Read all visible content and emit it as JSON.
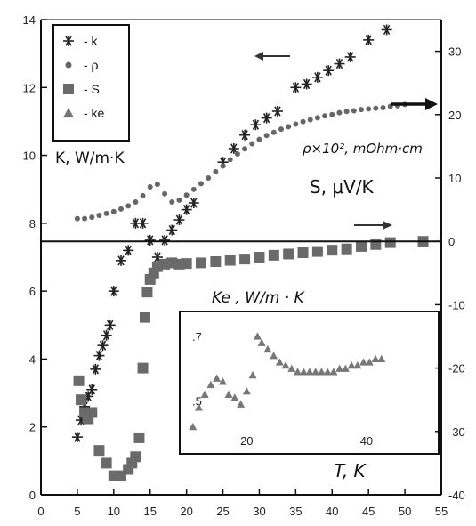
{
  "chart_data": {
    "type": "scatter",
    "x": {
      "label": "T, K",
      "range": [
        0,
        55
      ],
      "ticks": [
        0,
        5,
        10,
        15,
        20,
        25,
        30,
        35,
        40,
        45,
        50,
        55
      ]
    },
    "y_left": {
      "label": "K, W/m·K",
      "range": [
        0,
        14
      ],
      "ticks": [
        0,
        2,
        4,
        6,
        8,
        10,
        12,
        14
      ]
    },
    "y_right": {
      "label_rho": "ρ×10², mOhm·cm",
      "label_s": "S, μV/K",
      "range": [
        -40,
        35
      ],
      "ticks": [
        -40,
        -30,
        -20,
        -10,
        0,
        10,
        20,
        30
      ]
    },
    "legend": {
      "position": "top-left",
      "entries": [
        {
          "marker": "asterisk",
          "label": "- k"
        },
        {
          "marker": "dot",
          "label": "- ρ"
        },
        {
          "marker": "square",
          "label": "- S"
        },
        {
          "marker": "triangle",
          "label": "- ke"
        }
      ]
    },
    "series": [
      {
        "name": "k",
        "axis": "left",
        "marker": "asterisk",
        "points": [
          [
            5.0,
            1.7
          ],
          [
            5.5,
            2.2
          ],
          [
            6.0,
            2.6
          ],
          [
            6.5,
            2.9
          ],
          [
            7.0,
            3.1
          ],
          [
            7.5,
            3.7
          ],
          [
            8.0,
            4.1
          ],
          [
            8.5,
            4.4
          ],
          [
            9.0,
            4.7
          ],
          [
            9.5,
            5.0
          ],
          [
            10.0,
            6.0
          ],
          [
            11.0,
            6.9
          ],
          [
            12.0,
            7.2
          ],
          [
            13.0,
            8.0
          ],
          [
            14.0,
            8.0
          ],
          [
            15.0,
            7.5
          ],
          [
            16.0,
            7.0
          ],
          [
            17.0,
            7.5
          ],
          [
            18.0,
            7.8
          ],
          [
            19.0,
            8.1
          ],
          [
            20.0,
            8.4
          ],
          [
            21.0,
            8.6
          ],
          [
            25.0,
            9.8
          ],
          [
            26.5,
            10.2
          ],
          [
            28.0,
            10.6
          ],
          [
            29.5,
            10.9
          ],
          [
            31.0,
            11.1
          ],
          [
            32.5,
            11.3
          ],
          [
            35.0,
            12.0
          ],
          [
            36.5,
            12.1
          ],
          [
            38.0,
            12.3
          ],
          [
            39.5,
            12.5
          ],
          [
            41.0,
            12.7
          ],
          [
            42.5,
            12.9
          ],
          [
            45.0,
            13.4
          ],
          [
            47.5,
            13.7
          ]
        ]
      },
      {
        "name": "ρ",
        "axis": "right",
        "marker": "dot",
        "points": [
          [
            5,
            3.6
          ],
          [
            6,
            3.6
          ],
          [
            7,
            3.8
          ],
          [
            8,
            4.1
          ],
          [
            9,
            4.4
          ],
          [
            10,
            4.7
          ],
          [
            11,
            5.1
          ],
          [
            12,
            5.6
          ],
          [
            13,
            6.2
          ],
          [
            14,
            7.2
          ],
          [
            15,
            8.6
          ],
          [
            16,
            9.0
          ],
          [
            17,
            7.5
          ],
          [
            18,
            6.2
          ],
          [
            19,
            6.5
          ],
          [
            20,
            7.3
          ],
          [
            21,
            8.2
          ],
          [
            22,
            9.1
          ],
          [
            23,
            10.0
          ],
          [
            24,
            11.0
          ],
          [
            25,
            11.9
          ],
          [
            26,
            12.9
          ],
          [
            27,
            13.8
          ],
          [
            28,
            14.6
          ],
          [
            29,
            15.4
          ],
          [
            30,
            16.1
          ],
          [
            31,
            16.7
          ],
          [
            32,
            17.2
          ],
          [
            33,
            17.7
          ],
          [
            34,
            18.1
          ],
          [
            35,
            18.5
          ],
          [
            36,
            18.9
          ],
          [
            37,
            19.2
          ],
          [
            38,
            19.5
          ],
          [
            39,
            19.8
          ],
          [
            40,
            20.0
          ],
          [
            41,
            20.3
          ],
          [
            42,
            20.5
          ],
          [
            43,
            20.6
          ],
          [
            44,
            20.8
          ],
          [
            45,
            20.9
          ],
          [
            46,
            21.0
          ],
          [
            47,
            21.1
          ],
          [
            48,
            21.3
          ],
          [
            49,
            21.4
          ],
          [
            50,
            21.6
          ]
        ]
      },
      {
        "name": "S",
        "axis": "right",
        "marker": "square",
        "points": [
          [
            5.2,
            -22
          ],
          [
            5.5,
            -25
          ],
          [
            6.0,
            -27
          ],
          [
            6.5,
            -28
          ],
          [
            7.0,
            -27
          ],
          [
            8.0,
            -33
          ],
          [
            9.0,
            -35
          ],
          [
            10.0,
            -37
          ],
          [
            11.0,
            -37
          ],
          [
            12.0,
            -36
          ],
          [
            12.5,
            -35
          ],
          [
            13.0,
            -34
          ],
          [
            13.5,
            -31
          ],
          [
            14.0,
            -20
          ],
          [
            14.3,
            -12
          ],
          [
            14.6,
            -8
          ],
          [
            15.0,
            -6
          ],
          [
            15.5,
            -5
          ],
          [
            16.0,
            -4
          ],
          [
            17.0,
            -3.6
          ],
          [
            18.0,
            -3.4
          ],
          [
            19.0,
            -3.6
          ],
          [
            20.0,
            -3.5
          ],
          [
            22.0,
            -3.4
          ],
          [
            24.0,
            -3.2
          ],
          [
            26.0,
            -3.0
          ],
          [
            28.0,
            -2.8
          ],
          [
            30.0,
            -2.5
          ],
          [
            32.0,
            -2.2
          ],
          [
            34.0,
            -2.0
          ],
          [
            36.0,
            -1.8
          ],
          [
            38.0,
            -1.6
          ],
          [
            40.0,
            -1.4
          ],
          [
            42.0,
            -1.2
          ],
          [
            44.0,
            -0.8
          ],
          [
            46.0,
            -0.5
          ],
          [
            48.0,
            -0.2
          ],
          [
            52.5,
            0
          ]
        ]
      }
    ],
    "inset": {
      "ylabel": "Ke , W/m · K",
      "xlabel": "T, K",
      "x_range": [
        10,
        51
      ],
      "y_range": [
        0.38,
        0.76
      ],
      "x_ticks": [
        20,
        40
      ],
      "y_ticks": [
        ".7",
        ".5"
      ],
      "series": {
        "name": "ke",
        "marker": "triangle",
        "points": [
          [
            11.0,
            0.42
          ],
          [
            12.0,
            0.48
          ],
          [
            13.0,
            0.52
          ],
          [
            14.0,
            0.55
          ],
          [
            15.0,
            0.57
          ],
          [
            16.0,
            0.56
          ],
          [
            17.0,
            0.52
          ],
          [
            18.0,
            0.51
          ],
          [
            19.0,
            0.49
          ],
          [
            20.0,
            0.53
          ],
          [
            21.0,
            0.58
          ],
          [
            21.8,
            0.7
          ],
          [
            22.5,
            0.68
          ],
          [
            23.5,
            0.66
          ],
          [
            24.5,
            0.64
          ],
          [
            25.5,
            0.62
          ],
          [
            26.5,
            0.61
          ],
          [
            27.5,
            0.6
          ],
          [
            28.5,
            0.59
          ],
          [
            29.5,
            0.59
          ],
          [
            30.5,
            0.59
          ],
          [
            31.5,
            0.59
          ],
          [
            32.5,
            0.59
          ],
          [
            33.5,
            0.59
          ],
          [
            34.5,
            0.59
          ],
          [
            35.5,
            0.6
          ],
          [
            36.5,
            0.6
          ],
          [
            37.5,
            0.61
          ],
          [
            38.5,
            0.61
          ],
          [
            39.5,
            0.62
          ],
          [
            40.5,
            0.62
          ],
          [
            41.5,
            0.63
          ],
          [
            42.5,
            0.63
          ]
        ]
      }
    },
    "grid": false
  }
}
